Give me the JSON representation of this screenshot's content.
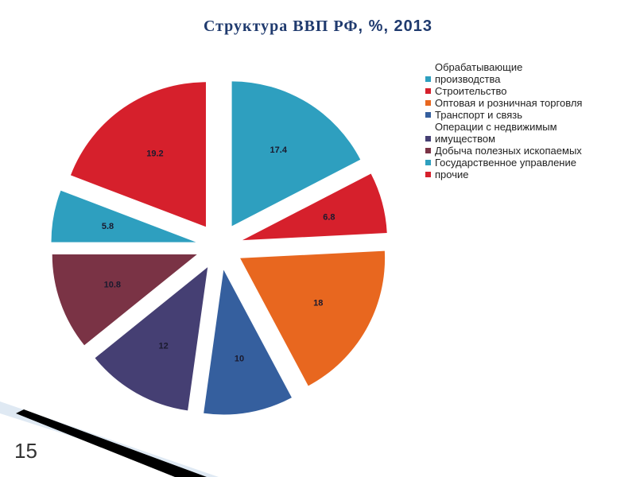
{
  "title": {
    "main": "Структура ВВП   РФ",
    "rest": ", %, 2013"
  },
  "page_number": "15",
  "chart_data": {
    "type": "pie",
    "title": "Структура ВВП   РФ, %, 2013",
    "slices": [
      {
        "label": "Обрабатывающие производства",
        "value": 17.4,
        "value_label": "17.4",
        "color": "#2e9fbf"
      },
      {
        "label": "Строительство",
        "value": 6.8,
        "value_label": "6.8",
        "color": "#d6202c"
      },
      {
        "label": "Оптовая и розничная торговля",
        "value": 18,
        "value_label": "18",
        "color": "#e8671f"
      },
      {
        "label": "Транспорт и связь",
        "value": 10,
        "value_label": "10",
        "color": "#355f9e"
      },
      {
        "label": "Операции с недвижимым имуществом",
        "value": 12,
        "value_label": "12",
        "color": "#453f73"
      },
      {
        "label": "Добыча полезных ископаемых",
        "value": 10.8,
        "value_label": "10.8",
        "color": "#7a3345"
      },
      {
        "label": " Государственное управление",
        "value": 5.8,
        "value_label": "5.8",
        "color": "#2e9fbf"
      },
      {
        "label": "прочие",
        "value": 19.2,
        "value_label": "19.2",
        "color": "#d6202c"
      }
    ],
    "legend_position": "right",
    "exploded": true
  },
  "legend": {
    "items": [
      {
        "label": "Обрабатывающие производства",
        "color": "#2e9fbf"
      },
      {
        "label": "Строительство",
        "color": "#d6202c"
      },
      {
        "label": "Оптовая и розничная торговля",
        "color": "#e8671f"
      },
      {
        "label": "Транспорт и связь",
        "color": "#355f9e"
      },
      {
        "label": "Операции с недвижимым имуществом",
        "color": "#453f73"
      },
      {
        "label": "Добыча полезных ископаемых",
        "color": "#7a3345"
      },
      {
        "label": " Государственное управление",
        "color": "#2e9fbf"
      },
      {
        "label": "прочие",
        "color": "#d6202c"
      }
    ]
  }
}
